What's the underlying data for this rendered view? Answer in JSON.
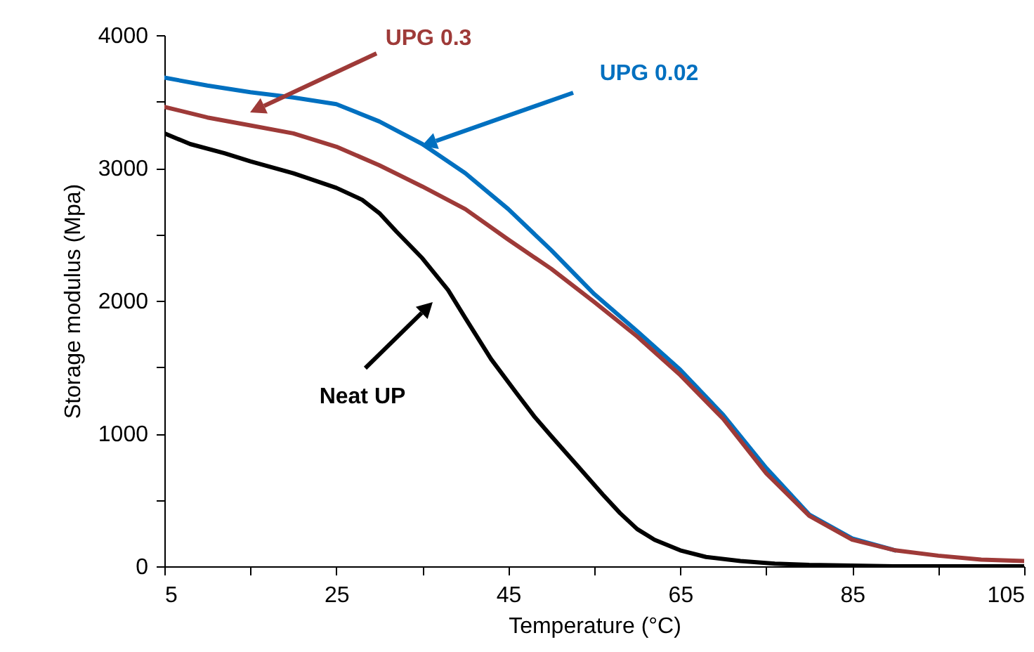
{
  "chart_data": {
    "type": "line",
    "xlabel": "Temperature (°C)",
    "ylabel": "Storage modulus (Mpa)",
    "xlim": [
      5,
      105
    ],
    "xticks": [
      5,
      {
        "value": 15,
        "label": null
      },
      25,
      {
        "value": 35,
        "label": null
      },
      45,
      {
        "value": 55,
        "label": null
      },
      65,
      {
        "value": 75,
        "label": null
      },
      85,
      {
        "value": 95,
        "label": null
      },
      105
    ],
    "ylim": [
      0,
      4000
    ],
    "yticks": [
      0,
      {
        "value": 500,
        "label": null
      },
      1000,
      {
        "value": 1500,
        "label": null
      },
      2000,
      {
        "value": 2500,
        "label": null
      },
      3000,
      {
        "value": 3500,
        "label": null
      },
      4000
    ],
    "grid": false,
    "line_style": "solid",
    "marker": "none",
    "series": [
      {
        "name": "Neat UP",
        "color": "#000000",
        "x": [
          5,
          8,
          12,
          15,
          20,
          25,
          28,
          30,
          32,
          35,
          38,
          40,
          43,
          46,
          48,
          50,
          53,
          56,
          58,
          60,
          62,
          65,
          68,
          72,
          76,
          80,
          90,
          105
        ],
        "values": [
          3260,
          3180,
          3110,
          3050,
          2960,
          2850,
          2760,
          2660,
          2520,
          2320,
          2080,
          1870,
          1560,
          1300,
          1130,
          980,
          760,
          540,
          400,
          280,
          200,
          120,
          70,
          40,
          20,
          10,
          0,
          0
        ]
      },
      {
        "name": "UPG 0.02",
        "color": "#0070c0",
        "x": [
          5,
          10,
          15,
          20,
          25,
          30,
          35,
          40,
          45,
          50,
          55,
          60,
          65,
          70,
          75,
          80,
          85,
          90
        ],
        "values": [
          3680,
          3620,
          3570,
          3530,
          3480,
          3350,
          3180,
          2960,
          2690,
          2380,
          2050,
          1770,
          1480,
          1140,
          740,
          390,
          210,
          120
        ]
      },
      {
        "name": "UPG 0.3",
        "color": "#9e3a38",
        "x": [
          5,
          10,
          15,
          20,
          25,
          30,
          35,
          40,
          45,
          50,
          55,
          60,
          65,
          70,
          75,
          80,
          85,
          90,
          95,
          100,
          105
        ],
        "values": [
          3460,
          3380,
          3320,
          3260,
          3160,
          3020,
          2860,
          2690,
          2460,
          2240,
          1990,
          1730,
          1440,
          1110,
          700,
          380,
          200,
          120,
          80,
          50,
          40
        ]
      }
    ]
  }
}
